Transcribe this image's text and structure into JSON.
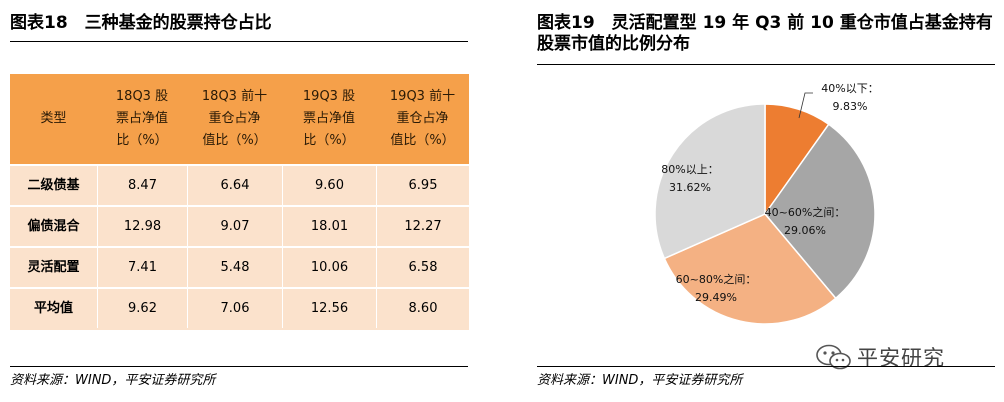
{
  "left_panel": {
    "title": "图表18　三种基金的股票持仓占比",
    "source": "资料来源：WIND，平安证券研究所"
  },
  "right_panel": {
    "title": "图表19　灵活配置型 19 年 Q3 前 10 重仓市值占基金持有股票市值的比例分布",
    "source": "资料来源：WIND，平安证券研究所"
  },
  "watermark": {
    "text": "平安研究",
    "icon": "wechat-icon"
  },
  "colors": {
    "header": "#f5a04a",
    "body": "#fbe2cc"
  },
  "chart_data": [
    {
      "type": "table",
      "columns": [
        "类型",
        "18Q3 股票占净值比（%）",
        "18Q3 前十重仓占净值比（%）",
        "19Q3 股票占净值比（%）",
        "19Q3 前十重仓占净值比（%）"
      ],
      "columns_display": [
        [
          "类型"
        ],
        [
          "18Q3 股",
          "票占净值",
          "比（%）"
        ],
        [
          "18Q3 前十",
          "重仓占净",
          "值比（%）"
        ],
        [
          "19Q3 股",
          "票占净值",
          "比（%）"
        ],
        [
          "19Q3 前十",
          "重仓占净",
          "值比（%）"
        ]
      ],
      "rows": [
        [
          "二级债基",
          "8.47",
          "6.64",
          "9.60",
          "6.95"
        ],
        [
          "偏债混合",
          "12.98",
          "9.07",
          "18.01",
          "12.27"
        ],
        [
          "灵活配置",
          "7.41",
          "5.48",
          "10.06",
          "6.58"
        ],
        [
          "平均值",
          "9.62",
          "7.06",
          "12.56",
          "8.60"
        ]
      ]
    },
    {
      "type": "pie",
      "slices": [
        {
          "label": "40%以下：",
          "value": 9.83,
          "text": "9.83%",
          "color": "#ed7d31"
        },
        {
          "label": "40~60%之间：",
          "value": 29.06,
          "text": "29.06%",
          "color": "#a6a6a6"
        },
        {
          "label": "60~80%之间：",
          "value": 29.49,
          "text": "29.49%",
          "color": "#f4b183"
        },
        {
          "label": "80%以上：",
          "value": 31.62,
          "text": "31.62%",
          "color": "#d9d9d9"
        }
      ]
    }
  ]
}
